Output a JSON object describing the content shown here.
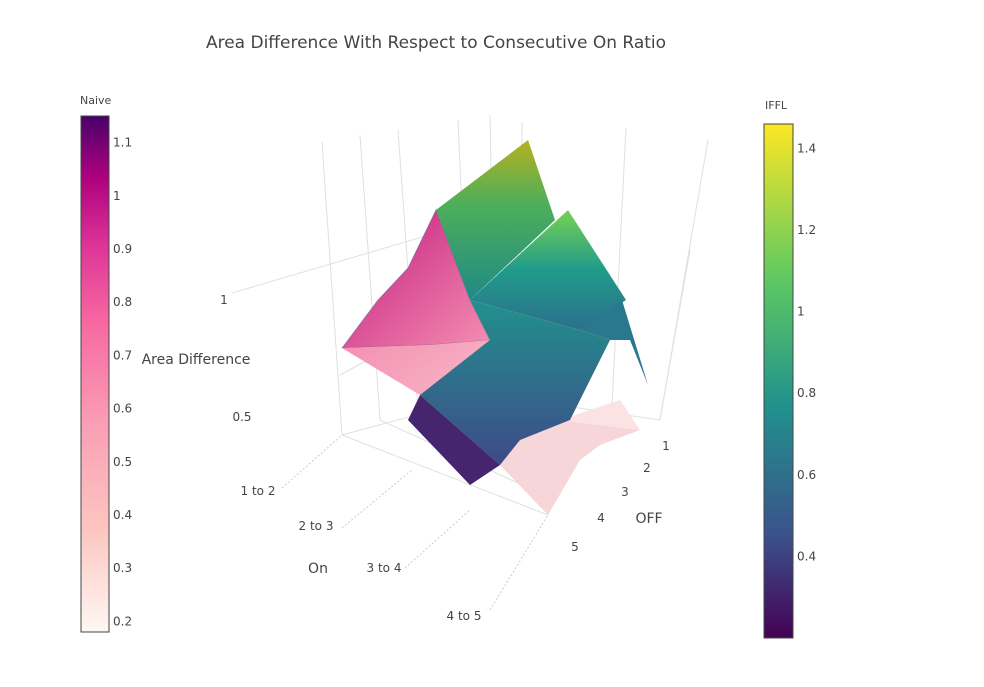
{
  "chart_data": {
    "type": "surface",
    "title": "Area Difference With Respect to Consecutive On Ratio",
    "x_axis": {
      "title": "On",
      "ticks": [
        "1 to 2",
        "2 to 3",
        "3 to 4",
        "4 to 5"
      ]
    },
    "y_axis": {
      "title": "OFF",
      "ticks": [
        "1",
        "2",
        "3",
        "4",
        "5"
      ]
    },
    "z_axis": {
      "title": "Area Difference",
      "ticks": [
        "0.5",
        "1"
      ]
    },
    "series": [
      {
        "name": "Naive",
        "colorscale": "RdPu",
        "z": [
          [
            0.78,
            0.55,
            0.38,
            0.3,
            0.25
          ],
          [
            1.05,
            0.8,
            0.55,
            0.35,
            0.22
          ],
          [
            0.95,
            0.7,
            0.6,
            0.4,
            0.3
          ],
          [
            0.5,
            0.45,
            0.38,
            0.32,
            0.2
          ]
        ]
      },
      {
        "name": "IFFL",
        "colorscale": "Viridis",
        "z": [
          [
            1.42,
            1.0,
            0.7,
            0.45,
            0.25
          ],
          [
            1.2,
            0.85,
            0.65,
            0.45,
            0.3
          ],
          [
            0.95,
            0.8,
            0.6,
            0.55,
            0.35
          ],
          [
            0.8,
            0.75,
            0.7,
            0.6,
            0.45
          ]
        ]
      }
    ],
    "colorbars": [
      {
        "title": "Naive",
        "ticks": [
          "0.2",
          "0.3",
          "0.4",
          "0.5",
          "0.6",
          "0.7",
          "0.8",
          "0.9",
          "1",
          "1.1"
        ],
        "range": [
          0.18,
          1.15
        ]
      },
      {
        "title": "IFFL",
        "ticks": [
          "0.4",
          "0.6",
          "0.8",
          "1",
          "1.2",
          "1.4"
        ],
        "range": [
          0.2,
          1.46
        ]
      }
    ],
    "grid": true
  }
}
